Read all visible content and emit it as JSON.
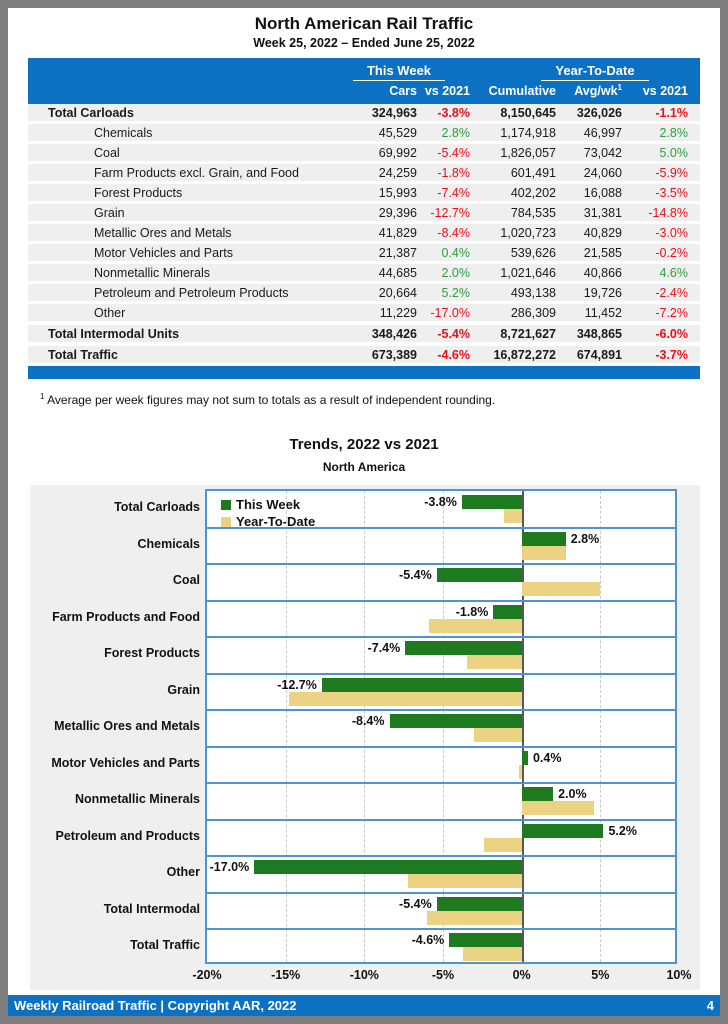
{
  "page": {
    "title": "North American Rail Traffic",
    "subtitle": "Week 25, 2022 – Ended June 25, 2022",
    "footnote_sup": "1",
    "footnote_text": " Average per week figures may not sum to totals as a result of independent rounding.",
    "footer_left": "Weekly Railroad Traffic | Copyright AAR, 2022",
    "footer_page": "4"
  },
  "colors": {
    "header_blue": "#0c71c3",
    "negative_red": "#e8101c",
    "positive_green": "#2e9e40",
    "bar_green": "#1d7a1f",
    "bar_tan": "#ecd384",
    "grid_blue": "#4f93d2",
    "row_gray": "#efefef"
  },
  "table": {
    "group_headers": {
      "this_week": "This Week",
      "year_to_date": "Year-To-Date"
    },
    "col_headers": {
      "cars": "Cars",
      "vs_week": "vs 2021",
      "cumulative": "Cumulative",
      "avg_wk": "Avg/wk",
      "avg_wk_sup": "1",
      "vs_ytd": "vs 2021"
    },
    "rows": [
      {
        "label": "Total Carloads",
        "bold": true,
        "indent": false,
        "gap": false,
        "cars": "324,963",
        "vs_week": "-3.8%",
        "cumulative": "8,150,645",
        "avg_wk": "326,026",
        "vs_ytd": "-1.1%"
      },
      {
        "label": "Chemicals",
        "bold": false,
        "indent": true,
        "gap": false,
        "cars": "45,529",
        "vs_week": "2.8%",
        "cumulative": "1,174,918",
        "avg_wk": "46,997",
        "vs_ytd": "2.8%"
      },
      {
        "label": "Coal",
        "bold": false,
        "indent": true,
        "gap": false,
        "cars": "69,992",
        "vs_week": "-5.4%",
        "cumulative": "1,826,057",
        "avg_wk": "73,042",
        "vs_ytd": "5.0%"
      },
      {
        "label": "Farm Products excl. Grain, and Food",
        "bold": false,
        "indent": true,
        "gap": false,
        "cars": "24,259",
        "vs_week": "-1.8%",
        "cumulative": "601,491",
        "avg_wk": "24,060",
        "vs_ytd": "-5.9%"
      },
      {
        "label": "Forest Products",
        "bold": false,
        "indent": true,
        "gap": false,
        "cars": "15,993",
        "vs_week": "-7.4%",
        "cumulative": "402,202",
        "avg_wk": "16,088",
        "vs_ytd": "-3.5%"
      },
      {
        "label": "Grain",
        "bold": false,
        "indent": true,
        "gap": false,
        "cars": "29,396",
        "vs_week": "-12.7%",
        "cumulative": "784,535",
        "avg_wk": "31,381",
        "vs_ytd": "-14.8%"
      },
      {
        "label": "Metallic Ores and Metals",
        "bold": false,
        "indent": true,
        "gap": false,
        "cars": "41,829",
        "vs_week": "-8.4%",
        "cumulative": "1,020,723",
        "avg_wk": "40,829",
        "vs_ytd": "-3.0%"
      },
      {
        "label": "Motor Vehicles and Parts",
        "bold": false,
        "indent": true,
        "gap": false,
        "cars": "21,387",
        "vs_week": "0.4%",
        "cumulative": "539,626",
        "avg_wk": "21,585",
        "vs_ytd": "-0.2%"
      },
      {
        "label": "Nonmetallic Minerals",
        "bold": false,
        "indent": true,
        "gap": false,
        "cars": "44,685",
        "vs_week": "2.0%",
        "cumulative": "1,021,646",
        "avg_wk": "40,866",
        "vs_ytd": "4.6%"
      },
      {
        "label": "Petroleum and Petroleum Products",
        "bold": false,
        "indent": true,
        "gap": false,
        "cars": "20,664",
        "vs_week": "5.2%",
        "cumulative": "493,138",
        "avg_wk": "19,726",
        "vs_ytd": "-2.4%"
      },
      {
        "label": "Other",
        "bold": false,
        "indent": true,
        "gap": false,
        "cars": "11,229",
        "vs_week": "-17.0%",
        "cumulative": "286,309",
        "avg_wk": "11,452",
        "vs_ytd": "-7.2%"
      },
      {
        "label": "Total Intermodal Units",
        "bold": true,
        "indent": false,
        "gap": true,
        "cars": "348,426",
        "vs_week": "-5.4%",
        "cumulative": "8,721,627",
        "avg_wk": "348,865",
        "vs_ytd": "-6.0%"
      },
      {
        "label": "Total Traffic",
        "bold": true,
        "indent": false,
        "gap": true,
        "cars": "673,389",
        "vs_week": "-4.6%",
        "cumulative": "16,872,272",
        "avg_wk": "674,891",
        "vs_ytd": "-3.7%"
      }
    ]
  },
  "chart": {
    "title": "Trends, 2022 vs 2021",
    "subtitle": "North America"
  },
  "chart_data": {
    "type": "bar",
    "orientation": "horizontal",
    "title": "Trends, 2022 vs 2021",
    "subtitle": "North America",
    "categories": [
      "Total Carloads",
      "Chemicals",
      "Coal",
      "Farm Products and Food",
      "Forest Products",
      "Grain",
      "Metallic Ores and Metals",
      "Motor Vehicles and Parts",
      "Nonmetallic Minerals",
      "Petroleum and Products",
      "Other",
      "Total Intermodal",
      "Total Traffic"
    ],
    "series": [
      {
        "name": "This Week",
        "color": "#1d7a1f",
        "values": [
          -3.8,
          2.8,
          -5.4,
          -1.8,
          -7.4,
          -12.7,
          -8.4,
          0.4,
          2.0,
          5.2,
          -17.0,
          -5.4,
          -4.6
        ]
      },
      {
        "name": "Year-To-Date",
        "color": "#ecd384",
        "values": [
          -1.1,
          2.8,
          5.0,
          -5.9,
          -3.5,
          -14.8,
          -3.0,
          -0.2,
          4.6,
          -2.4,
          -7.2,
          -6.0,
          -3.7
        ]
      }
    ],
    "bar_labels": [
      "-3.8%",
      "2.8%",
      "-5.4%",
      "-1.8%",
      "-7.4%",
      "-12.7%",
      "-8.4%",
      "0.4%",
      "2.0%",
      "5.2%",
      "-17.0%",
      "-5.4%",
      "-4.6%"
    ],
    "xlim": [
      -20,
      10
    ],
    "x_tick_labels": [
      "-20%",
      "-15%",
      "-10%",
      "-5%",
      "0%",
      "5%",
      "10%"
    ],
    "grid": true,
    "legend_position": "top-left"
  }
}
